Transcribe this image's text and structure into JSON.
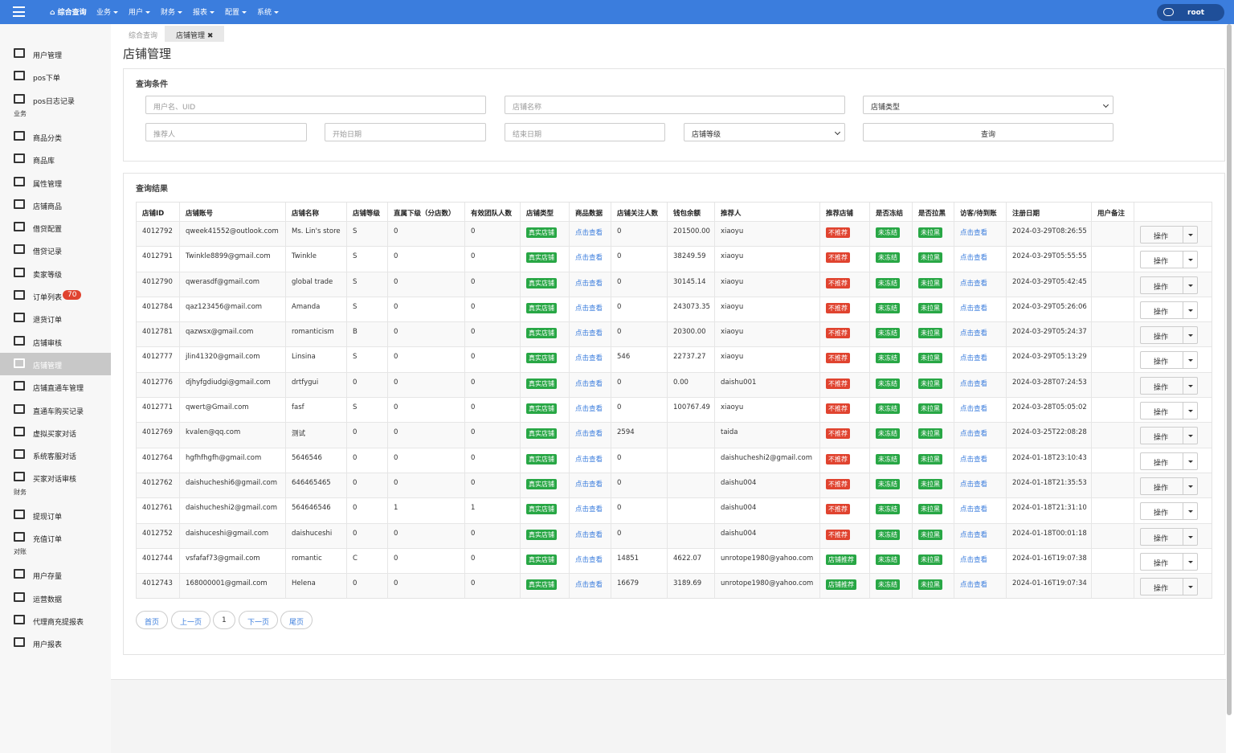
{
  "navbar": {
    "home": "综合查询",
    "menus": [
      "业务",
      "用户",
      "财务",
      "报表",
      "配置",
      "系统"
    ],
    "user": "root"
  },
  "sidebar": [
    {
      "items": [
        {
          "label": "用户管理"
        },
        {
          "label": "pos下单"
        },
        {
          "label": "pos日志记录"
        }
      ]
    },
    {
      "header": "业务",
      "items": [
        {
          "label": "商品分类"
        },
        {
          "label": "商品库"
        },
        {
          "label": "属性管理"
        },
        {
          "label": "店铺商品"
        },
        {
          "label": "借贷配置"
        },
        {
          "label": "借贷记录"
        },
        {
          "label": "卖家等级"
        },
        {
          "label": "订单列表",
          "badge": 70
        },
        {
          "label": "退货订单"
        },
        {
          "label": "店铺审核"
        },
        {
          "label": "店铺管理",
          "active": true
        },
        {
          "label": "店铺直通车管理"
        },
        {
          "label": "直通车购买记录"
        },
        {
          "label": "虚拟买家对话"
        },
        {
          "label": "系统客服对话"
        },
        {
          "label": "买家对话审核"
        }
      ]
    },
    {
      "header": "财务",
      "items": [
        {
          "label": "提现订单"
        },
        {
          "label": "充值订单"
        }
      ]
    },
    {
      "header": "对账",
      "items": [
        {
          "label": "用户存量"
        },
        {
          "label": "运营数据"
        },
        {
          "label": "代理商充提报表"
        },
        {
          "label": "用户报表"
        }
      ]
    }
  ],
  "tabs": [
    "综合查询",
    "店铺管理"
  ],
  "page_title": "店铺管理",
  "filters": {
    "title": "查询条件",
    "username": "用户名、UID",
    "shop_name": "店铺名称",
    "shop_type": "店铺类型",
    "referrer": "推荐人",
    "start_date": "开始日期",
    "end_date": "结束日期",
    "shop_level": "店铺等级",
    "submit": "查询"
  },
  "results": {
    "title": "查询结果",
    "headers": [
      "店铺ID",
      "店铺账号",
      "店铺名称",
      "店铺等级",
      "直属下级（分店数）",
      "有效团队人数",
      "店铺类型",
      "商品数据",
      "店铺关注人数",
      "钱包余额",
      "推荐人",
      "推荐店铺",
      "是否冻结",
      "是否拉黑",
      "访客/待到账",
      "注册日期",
      "用户备注"
    ],
    "link": "点击查看",
    "action": "操作",
    "rows": [
      {
        "id": 4012792,
        "account": "qweek41552@outlook.com",
        "name": "Ms. Lin's store",
        "level": "S",
        "direct": 0,
        "team": 0,
        "type": "真实店铺",
        "followers": 0,
        "balance": "201500.00",
        "referrer": "xiaoyu",
        "recommend": {
          "text": "不推荐",
          "color": "#e0432f"
        },
        "frozen": "未冻结",
        "blocked": "未拉黑",
        "registered": "2024-03-29T08:26:55"
      },
      {
        "id": 4012791,
        "account": "Twinkle8899@gmail.com",
        "name": "Twinkle",
        "level": "S",
        "direct": 0,
        "team": 0,
        "type": "真实店铺",
        "followers": 0,
        "balance": "38249.59",
        "referrer": "xiaoyu",
        "recommend": {
          "text": "不推荐",
          "color": "#e0432f"
        },
        "frozen": "未冻结",
        "blocked": "未拉黑",
        "registered": "2024-03-29T05:55:55"
      },
      {
        "id": 4012790,
        "account": "qwerasdf@gmail.com",
        "name": "global trade",
        "level": "S",
        "direct": 0,
        "team": 0,
        "type": "真实店铺",
        "followers": 0,
        "balance": "30145.14",
        "referrer": "xiaoyu",
        "recommend": {
          "text": "不推荐",
          "color": "#e0432f"
        },
        "frozen": "未冻结",
        "blocked": "未拉黑",
        "registered": "2024-03-29T05:42:45"
      },
      {
        "id": 4012784,
        "account": "qaz123456@mail.com",
        "name": "Amanda",
        "level": "S",
        "direct": 0,
        "team": 0,
        "type": "真实店铺",
        "followers": 0,
        "balance": "243073.35",
        "referrer": "xiaoyu",
        "recommend": {
          "text": "不推荐",
          "color": "#e0432f"
        },
        "frozen": "未冻结",
        "blocked": "未拉黑",
        "registered": "2024-03-29T05:26:06"
      },
      {
        "id": 4012781,
        "account": "qazwsx@gmail.com",
        "name": "romanticism",
        "level": "B",
        "direct": 0,
        "team": 0,
        "type": "真实店铺",
        "followers": 0,
        "balance": "20300.00",
        "referrer": "xiaoyu",
        "recommend": {
          "text": "不推荐",
          "color": "#e0432f"
        },
        "frozen": "未冻结",
        "blocked": "未拉黑",
        "registered": "2024-03-29T05:24:37"
      },
      {
        "id": 4012777,
        "account": "jlin41320@gmail.com",
        "name": "Linsina",
        "level": "S",
        "direct": 0,
        "team": 0,
        "type": "真实店铺",
        "followers": 546,
        "balance": "22737.27",
        "referrer": "xiaoyu",
        "recommend": {
          "text": "不推荐",
          "color": "#e0432f"
        },
        "frozen": "未冻结",
        "blocked": "未拉黑",
        "registered": "2024-03-29T05:13:29"
      },
      {
        "id": 4012776,
        "account": "djhyfgdiudgi@gmail.com",
        "name": "drtfygui",
        "level": "0",
        "direct": 0,
        "team": 0,
        "type": "真实店铺",
        "followers": 0,
        "balance": "0.00",
        "referrer": "daishu001",
        "recommend": {
          "text": "不推荐",
          "color": "#e0432f"
        },
        "frozen": "未冻结",
        "blocked": "未拉黑",
        "registered": "2024-03-28T07:24:53"
      },
      {
        "id": 4012771,
        "account": "qwert@Gmail.com",
        "name": "fasf",
        "level": "S",
        "direct": 0,
        "team": 0,
        "type": "真实店铺",
        "followers": 0,
        "balance": "100767.49",
        "referrer": "xiaoyu",
        "recommend": {
          "text": "不推荐",
          "color": "#e0432f"
        },
        "frozen": "未冻结",
        "blocked": "未拉黑",
        "registered": "2024-03-28T05:05:02"
      },
      {
        "id": 4012769,
        "account": "kvalen@qq.com",
        "name": "测试",
        "level": "0",
        "direct": 0,
        "team": 0,
        "type": "真实店铺",
        "followers": 2594,
        "referrer": "taida",
        "recommend": {
          "text": "不推荐",
          "color": "#e0432f"
        },
        "frozen": "未冻结",
        "blocked": "未拉黑",
        "registered": "2024-03-25T22:08:28"
      },
      {
        "id": 4012764,
        "account": "hgfhfhgfh@gmail.com",
        "name": "5646546",
        "level": "0",
        "direct": 0,
        "team": 0,
        "type": "真实店铺",
        "followers": 0,
        "referrer": "daishucheshi2@gmail.com",
        "recommend": {
          "text": "不推荐",
          "color": "#e0432f"
        },
        "frozen": "未冻结",
        "blocked": "未拉黑",
        "registered": "2024-01-18T23:10:43"
      },
      {
        "id": 4012762,
        "account": "daishucheshi6@gmail.com",
        "name": "646465465",
        "level": "0",
        "direct": 0,
        "team": 0,
        "type": "真实店铺",
        "followers": 0,
        "referrer": "daishu004",
        "recommend": {
          "text": "不推荐",
          "color": "#e0432f"
        },
        "frozen": "未冻结",
        "blocked": "未拉黑",
        "registered": "2024-01-18T21:35:53"
      },
      {
        "id": 4012761,
        "account": "daishucheshi2@gmail.com",
        "name": "564646546",
        "level": "0",
        "direct": 1,
        "team": 1,
        "type": "真实店铺",
        "followers": 0,
        "referrer": "daishu004",
        "recommend": {
          "text": "不推荐",
          "color": "#e0432f"
        },
        "frozen": "未冻结",
        "blocked": "未拉黑",
        "registered": "2024-01-18T21:31:10"
      },
      {
        "id": 4012752,
        "account": "daishuceshi@gmail.com",
        "name": "daishuceshi",
        "level": "0",
        "direct": 0,
        "team": 0,
        "type": "真实店铺",
        "followers": 0,
        "referrer": "daishu004",
        "recommend": {
          "text": "不推荐",
          "color": "#e0432f"
        },
        "frozen": "未冻结",
        "blocked": "未拉黑",
        "registered": "2024-01-18T00:01:18"
      },
      {
        "id": 4012744,
        "account": "vsfafaf73@gmail.com",
        "name": "romantic",
        "level": "C",
        "direct": 0,
        "team": 0,
        "type": "真实店铺",
        "followers": 14851,
        "balance": "4622.07",
        "referrer": "unrotope1980@yahoo.com",
        "recommend": {
          "text": "店铺推荐",
          "color": "#28a745"
        },
        "frozen": "未冻结",
        "blocked": "未拉黑",
        "registered": "2024-01-16T19:07:38"
      },
      {
        "id": 4012743,
        "account": "168000001@gmail.com",
        "name": "Helena",
        "level": "0",
        "direct": 0,
        "team": 0,
        "type": "真实店铺",
        "followers": 16679,
        "balance": "3189.69",
        "referrer": "unrotope1980@yahoo.com",
        "recommend": {
          "text": "店铺推荐",
          "color": "#28a745"
        },
        "frozen": "未冻结",
        "blocked": "未拉黑",
        "registered": "2024-01-16T19:07:34"
      }
    ]
  },
  "pagination": [
    "首页",
    "上一页",
    1,
    "下一页",
    "尾页"
  ]
}
